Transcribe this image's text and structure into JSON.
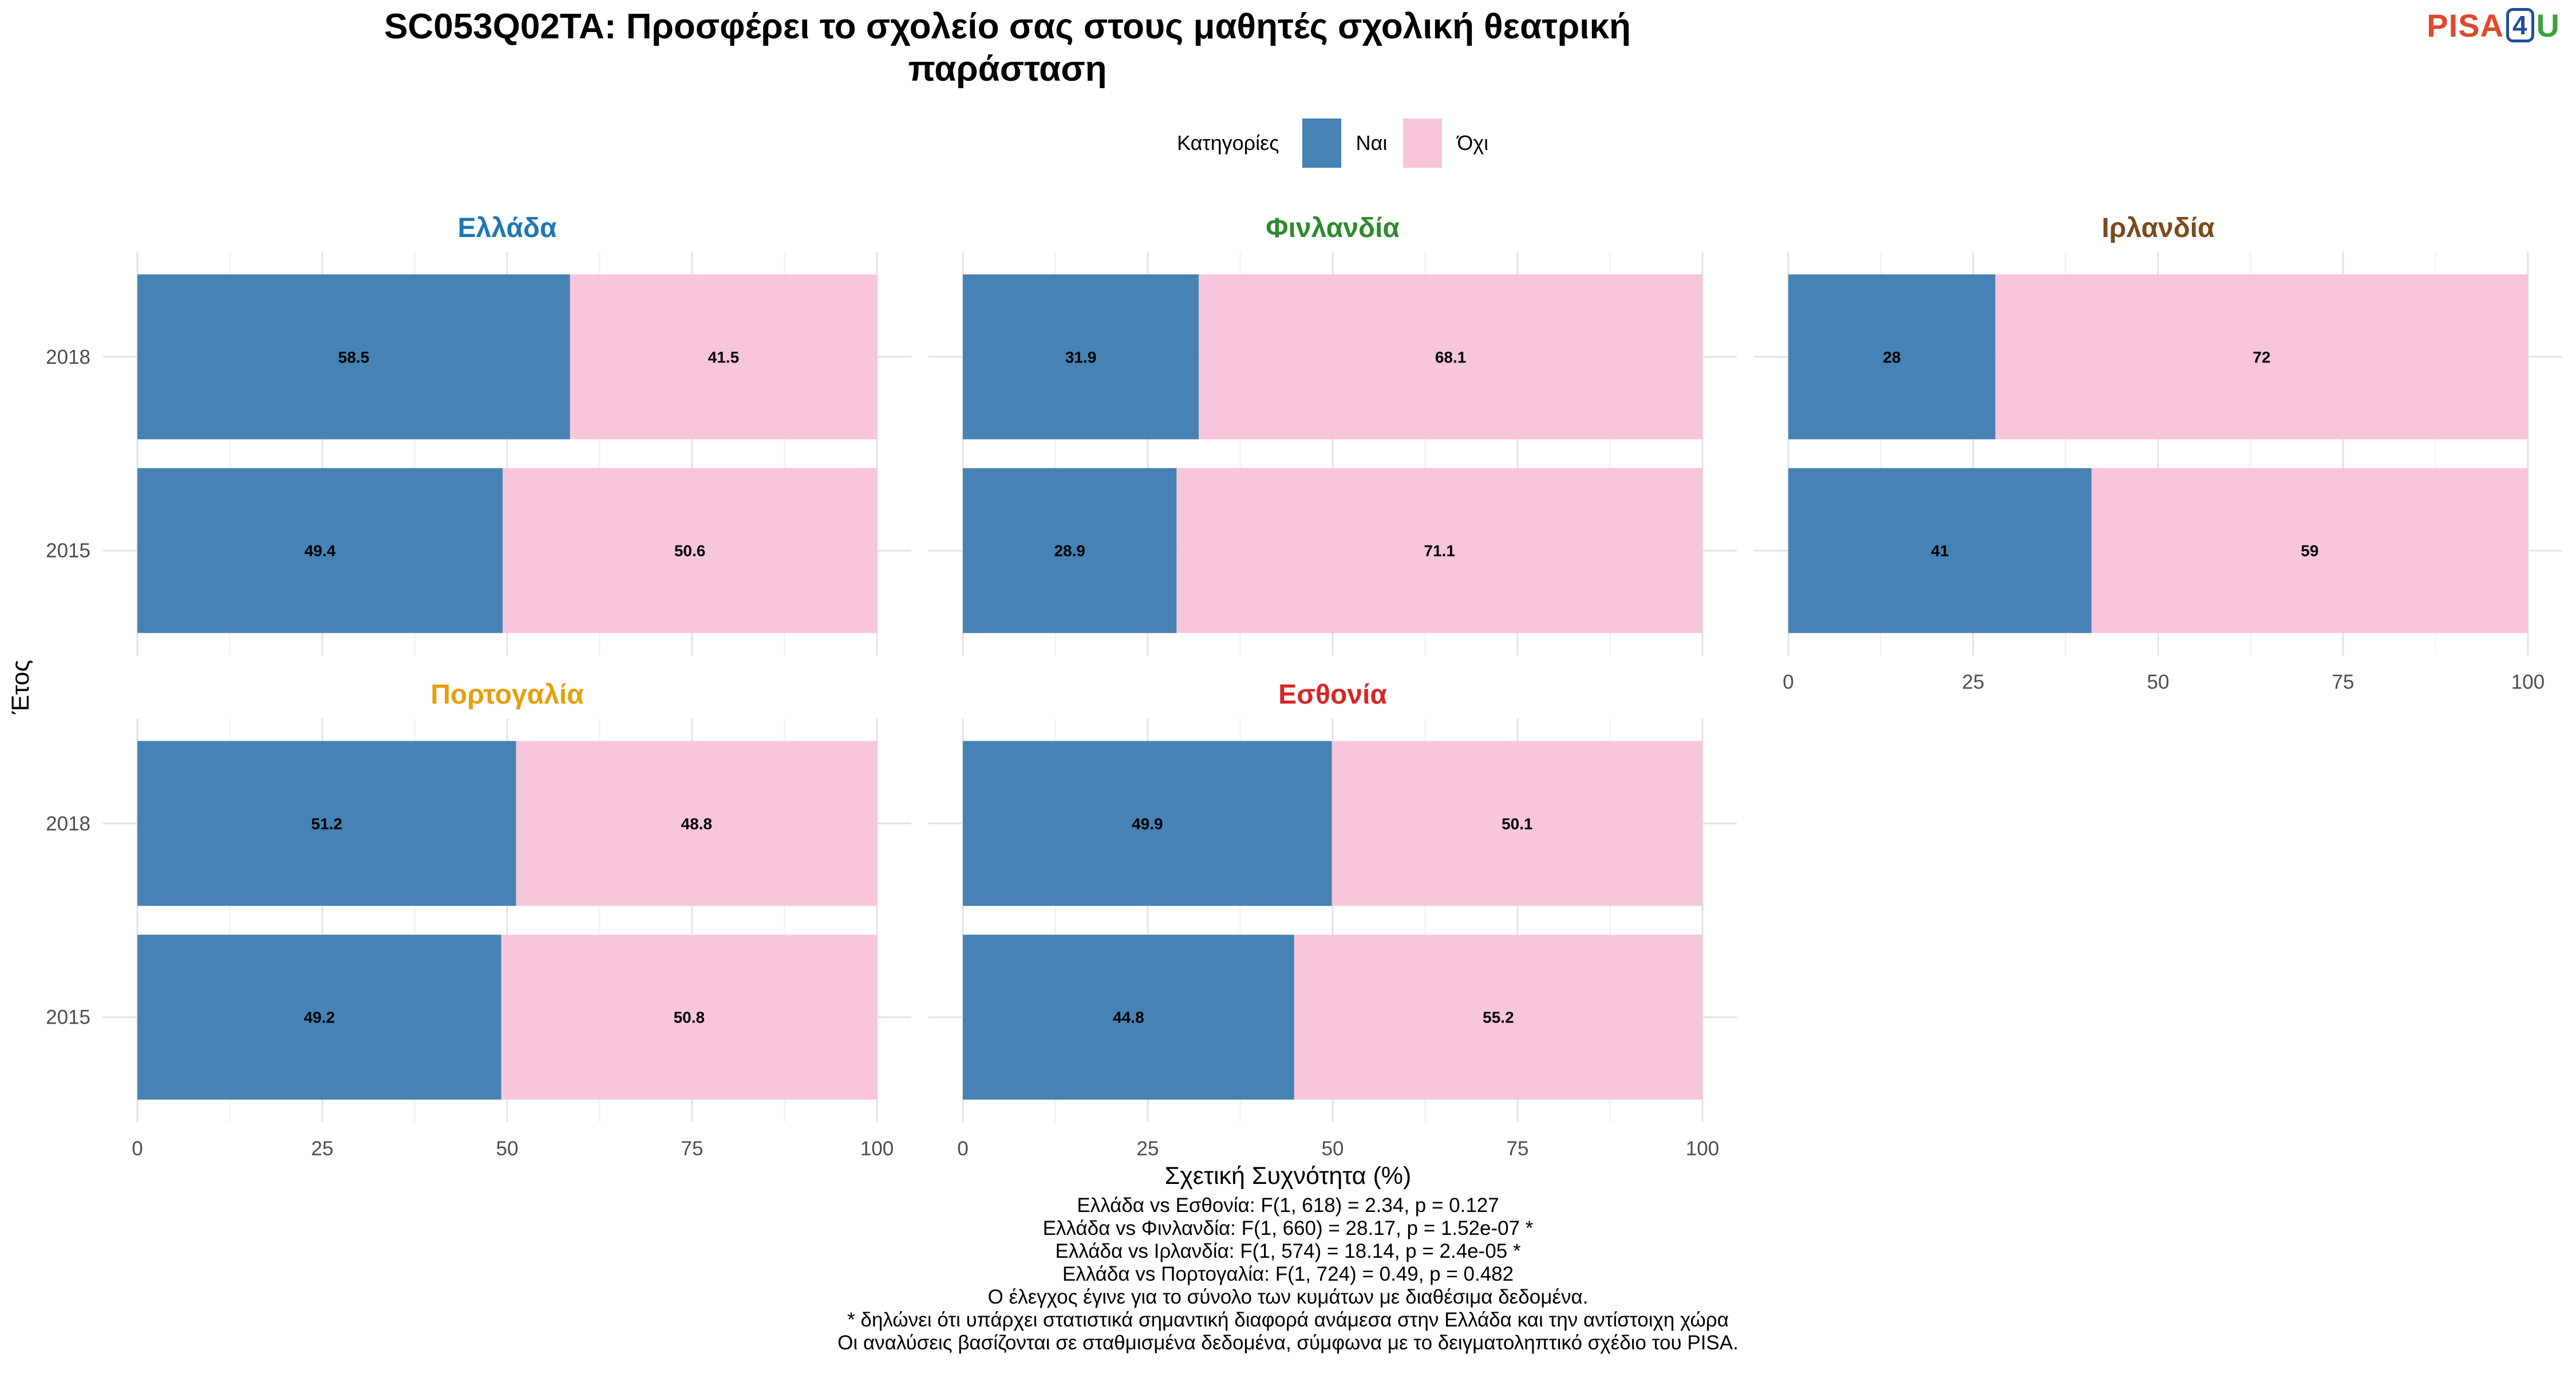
{
  "title_line1": "SC053Q02TA: Προσφέρει το σχολείο σας στους μαθητές σχολική θεατρική",
  "title_line2": "παράσταση",
  "logo": {
    "pisa": "PISA",
    "four": "4",
    "u": "U"
  },
  "legend": {
    "title": "Κατηγορίες",
    "items": [
      {
        "label": "Ναι",
        "color": "#4682b4"
      },
      {
        "label": "Όχι",
        "color": "#f7c6dc"
      }
    ]
  },
  "chart_data": {
    "type": "bar",
    "orientation": "horizontal",
    "stacked": true,
    "xlabel": "Σχετική Συχνότητα (%)",
    "ylabel": "Έτος",
    "xlim": [
      0,
      100
    ],
    "xticks": [
      "0",
      "25",
      "50",
      "75",
      "100"
    ],
    "categories": [
      "2018",
      "2015"
    ],
    "legend_position": "top",
    "grid": true,
    "panels": [
      {
        "country": "Ελλάδα",
        "title_color": "#1f77b4",
        "series": [
          {
            "name": "Ναι",
            "values": [
              58.5,
              49.4
            ]
          },
          {
            "name": "Όχι",
            "values": [
              41.5,
              50.6
            ]
          }
        ]
      },
      {
        "country": "Φινλανδία",
        "title_color": "#2e8b2e",
        "series": [
          {
            "name": "Ναι",
            "values": [
              31.9,
              28.9
            ]
          },
          {
            "name": "Όχι",
            "values": [
              68.1,
              71.1
            ]
          }
        ]
      },
      {
        "country": "Ιρλανδία",
        "title_color": "#7b4a1e",
        "series": [
          {
            "name": "Ναι",
            "values": [
              28,
              41
            ]
          },
          {
            "name": "Όχι",
            "values": [
              72,
              59
            ]
          }
        ]
      },
      {
        "country": "Πορτογαλία",
        "title_color": "#e5a00d",
        "series": [
          {
            "name": "Ναι",
            "values": [
              51.2,
              49.2
            ]
          },
          {
            "name": "Όχι",
            "values": [
              48.8,
              50.8
            ]
          }
        ]
      },
      {
        "country": "Εσθονία",
        "title_color": "#d62728",
        "series": [
          {
            "name": "Ναι",
            "values": [
              49.9,
              44.8
            ]
          },
          {
            "name": "Όχι",
            "values": [
              50.1,
              55.2
            ]
          }
        ]
      }
    ]
  },
  "notes": [
    "Ελλάδα vs Εσθονία: F(1, 618) = 2.34, p = 0.127",
    "Ελλάδα vs Φινλανδία: F(1, 660) = 28.17, p = 1.52e-07 *",
    "Ελλάδα vs Ιρλανδία: F(1, 574) = 18.14, p = 2.4e-05 *",
    "Ελλάδα vs Πορτογαλία: F(1, 724) = 0.49, p = 0.482",
    "Ο έλεγχος έγινε για το σύνολο των κυμάτων με διαθέσιμα δεδομένα.",
    "* δηλώνει ότι υπάρχει στατιστικά σημαντική διαφορά ανάμεσα στην Ελλάδα και την αντίστοιχη χώρα",
    "Οι αναλύσεις βασίζονται σε σταθμισμένα δεδομένα, σύμφωνα με το δειγματοληπτικό σχέδιο του PISA."
  ]
}
